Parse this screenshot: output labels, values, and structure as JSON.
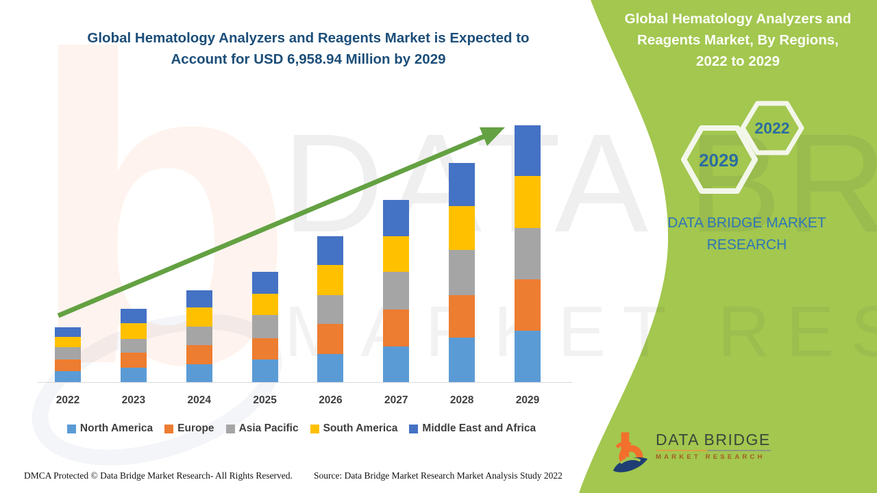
{
  "title": {
    "lines": [
      "Global Hematology Analyzers and Reagents Market is Expected to",
      "Account for USD 6,958.94 Million by 2029"
    ]
  },
  "panel": {
    "bg_color": "#A3C74F",
    "title_lines": [
      "Global Hematology Analyzers and",
      "Reagents Market, By Regions,",
      "2022 to 2029"
    ],
    "hexagons": [
      {
        "label": "2029"
      },
      {
        "label": "2022"
      }
    ],
    "caption_lines": [
      "DATA BRIDGE MARKET",
      "RESEARCH"
    ],
    "logo": {
      "name": "DATA BRIDGE",
      "sub": "MARKET RESEARCH"
    }
  },
  "watermarks": {
    "letter": "b",
    "line1": "DATA BRIDGE",
    "line2": "MARKET RESEARCH"
  },
  "footer": {
    "dmca": "DMCA Protected © Data Bridge Market Research- All Rights Reserved.",
    "source": "Source: Data Bridge Market Research Market Analysis Study 2022"
  },
  "chart_data": {
    "type": "bar",
    "stacked": true,
    "title": "Global Hematology Analyzers and Reagents Market is Expected to Account for USD 6,958.94 Million by 2029",
    "unit": "USD Million (estimated from bar heights; 2029 total stated as 6,958.94)",
    "categories": [
      "2022",
      "2023",
      "2024",
      "2025",
      "2026",
      "2027",
      "2028",
      "2029"
    ],
    "series": [
      {
        "name": "North America",
        "color": "#5B9BD5",
        "values": [
          297,
          388,
          483,
          612,
          761,
          965,
          1206,
          1392
        ]
      },
      {
        "name": "Europe",
        "color": "#ED7D31",
        "values": [
          316,
          403,
          520,
          575,
          817,
          1002,
          1151,
          1392
        ]
      },
      {
        "name": "Asia Pacific",
        "color": "#A5A5A5",
        "values": [
          334,
          371,
          501,
          631,
          780,
          1021,
          1225,
          1392
        ]
      },
      {
        "name": "South America",
        "color": "#FFC000",
        "values": [
          278,
          440,
          520,
          575,
          817,
          965,
          1188,
          1410
        ]
      },
      {
        "name": "Middle East and Africa",
        "color": "#4472C4",
        "values": [
          260,
          384,
          464,
          594,
          780,
          984,
          1169,
          1373
        ]
      }
    ],
    "totals_estimated": [
      1485,
      1986,
      2488,
      2987,
      3955,
      4937,
      5939,
      6959
    ],
    "xlabel": "",
    "ylabel": "",
    "y_axis_shown": false,
    "gridlines": false,
    "legend_position": "bottom",
    "annotations": [
      "green upward trend arrow from 2022 bar to 2029 bar"
    ],
    "arrow_color": "#63A142"
  }
}
